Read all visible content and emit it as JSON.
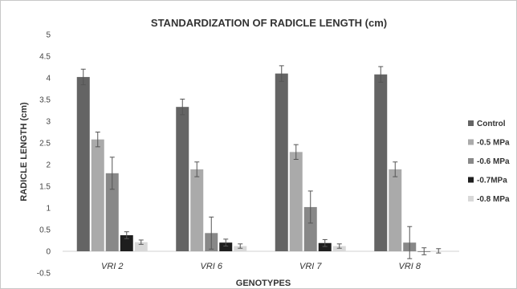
{
  "chart_data": {
    "type": "bar",
    "title": "STANDARDIZATION OF RADICLE LENGTH (cm)",
    "xlabel": "GENOTYPES",
    "ylabel": "RADICLE LENGTH (cm)",
    "ylim": [
      -0.5,
      5
    ],
    "yticks": [
      "-0.5",
      "0",
      "0.5",
      "1",
      "1.5",
      "2",
      "2.5",
      "3",
      "3.5",
      "4",
      "4.5",
      "5"
    ],
    "categories": [
      "VRI 2",
      "VRI 6",
      "VRI 7",
      "VRI 8"
    ],
    "legend_position": "right",
    "grid": false,
    "series": [
      {
        "name": "Control",
        "color": "#646464",
        "values": [
          4.02,
          3.33,
          4.1,
          4.08
        ],
        "errors": [
          0.18,
          0.18,
          0.18,
          0.18
        ]
      },
      {
        "name": "-0.5 MPa",
        "color": "#aaaaaa",
        "values": [
          2.58,
          1.89,
          2.29,
          1.89
        ],
        "errors": [
          0.17,
          0.17,
          0.17,
          0.17
        ]
      },
      {
        "name": "-0.6 MPa",
        "color": "#888888",
        "values": [
          1.8,
          0.42,
          1.02,
          0.2
        ],
        "errors": [
          0.37,
          0.37,
          0.37,
          0.37
        ]
      },
      {
        "name": "-0.7MPa",
        "color": "#1e1e1e",
        "values": [
          0.37,
          0.2,
          0.19,
          0.0
        ],
        "errors": [
          0.08,
          0.08,
          0.08,
          0.08
        ]
      },
      {
        "name": "-0.8 MPa",
        "color": "#d8d8d8",
        "values": [
          0.21,
          0.12,
          0.12,
          0.01
        ],
        "errors": [
          0.05,
          0.05,
          0.05,
          0.05
        ]
      }
    ]
  }
}
